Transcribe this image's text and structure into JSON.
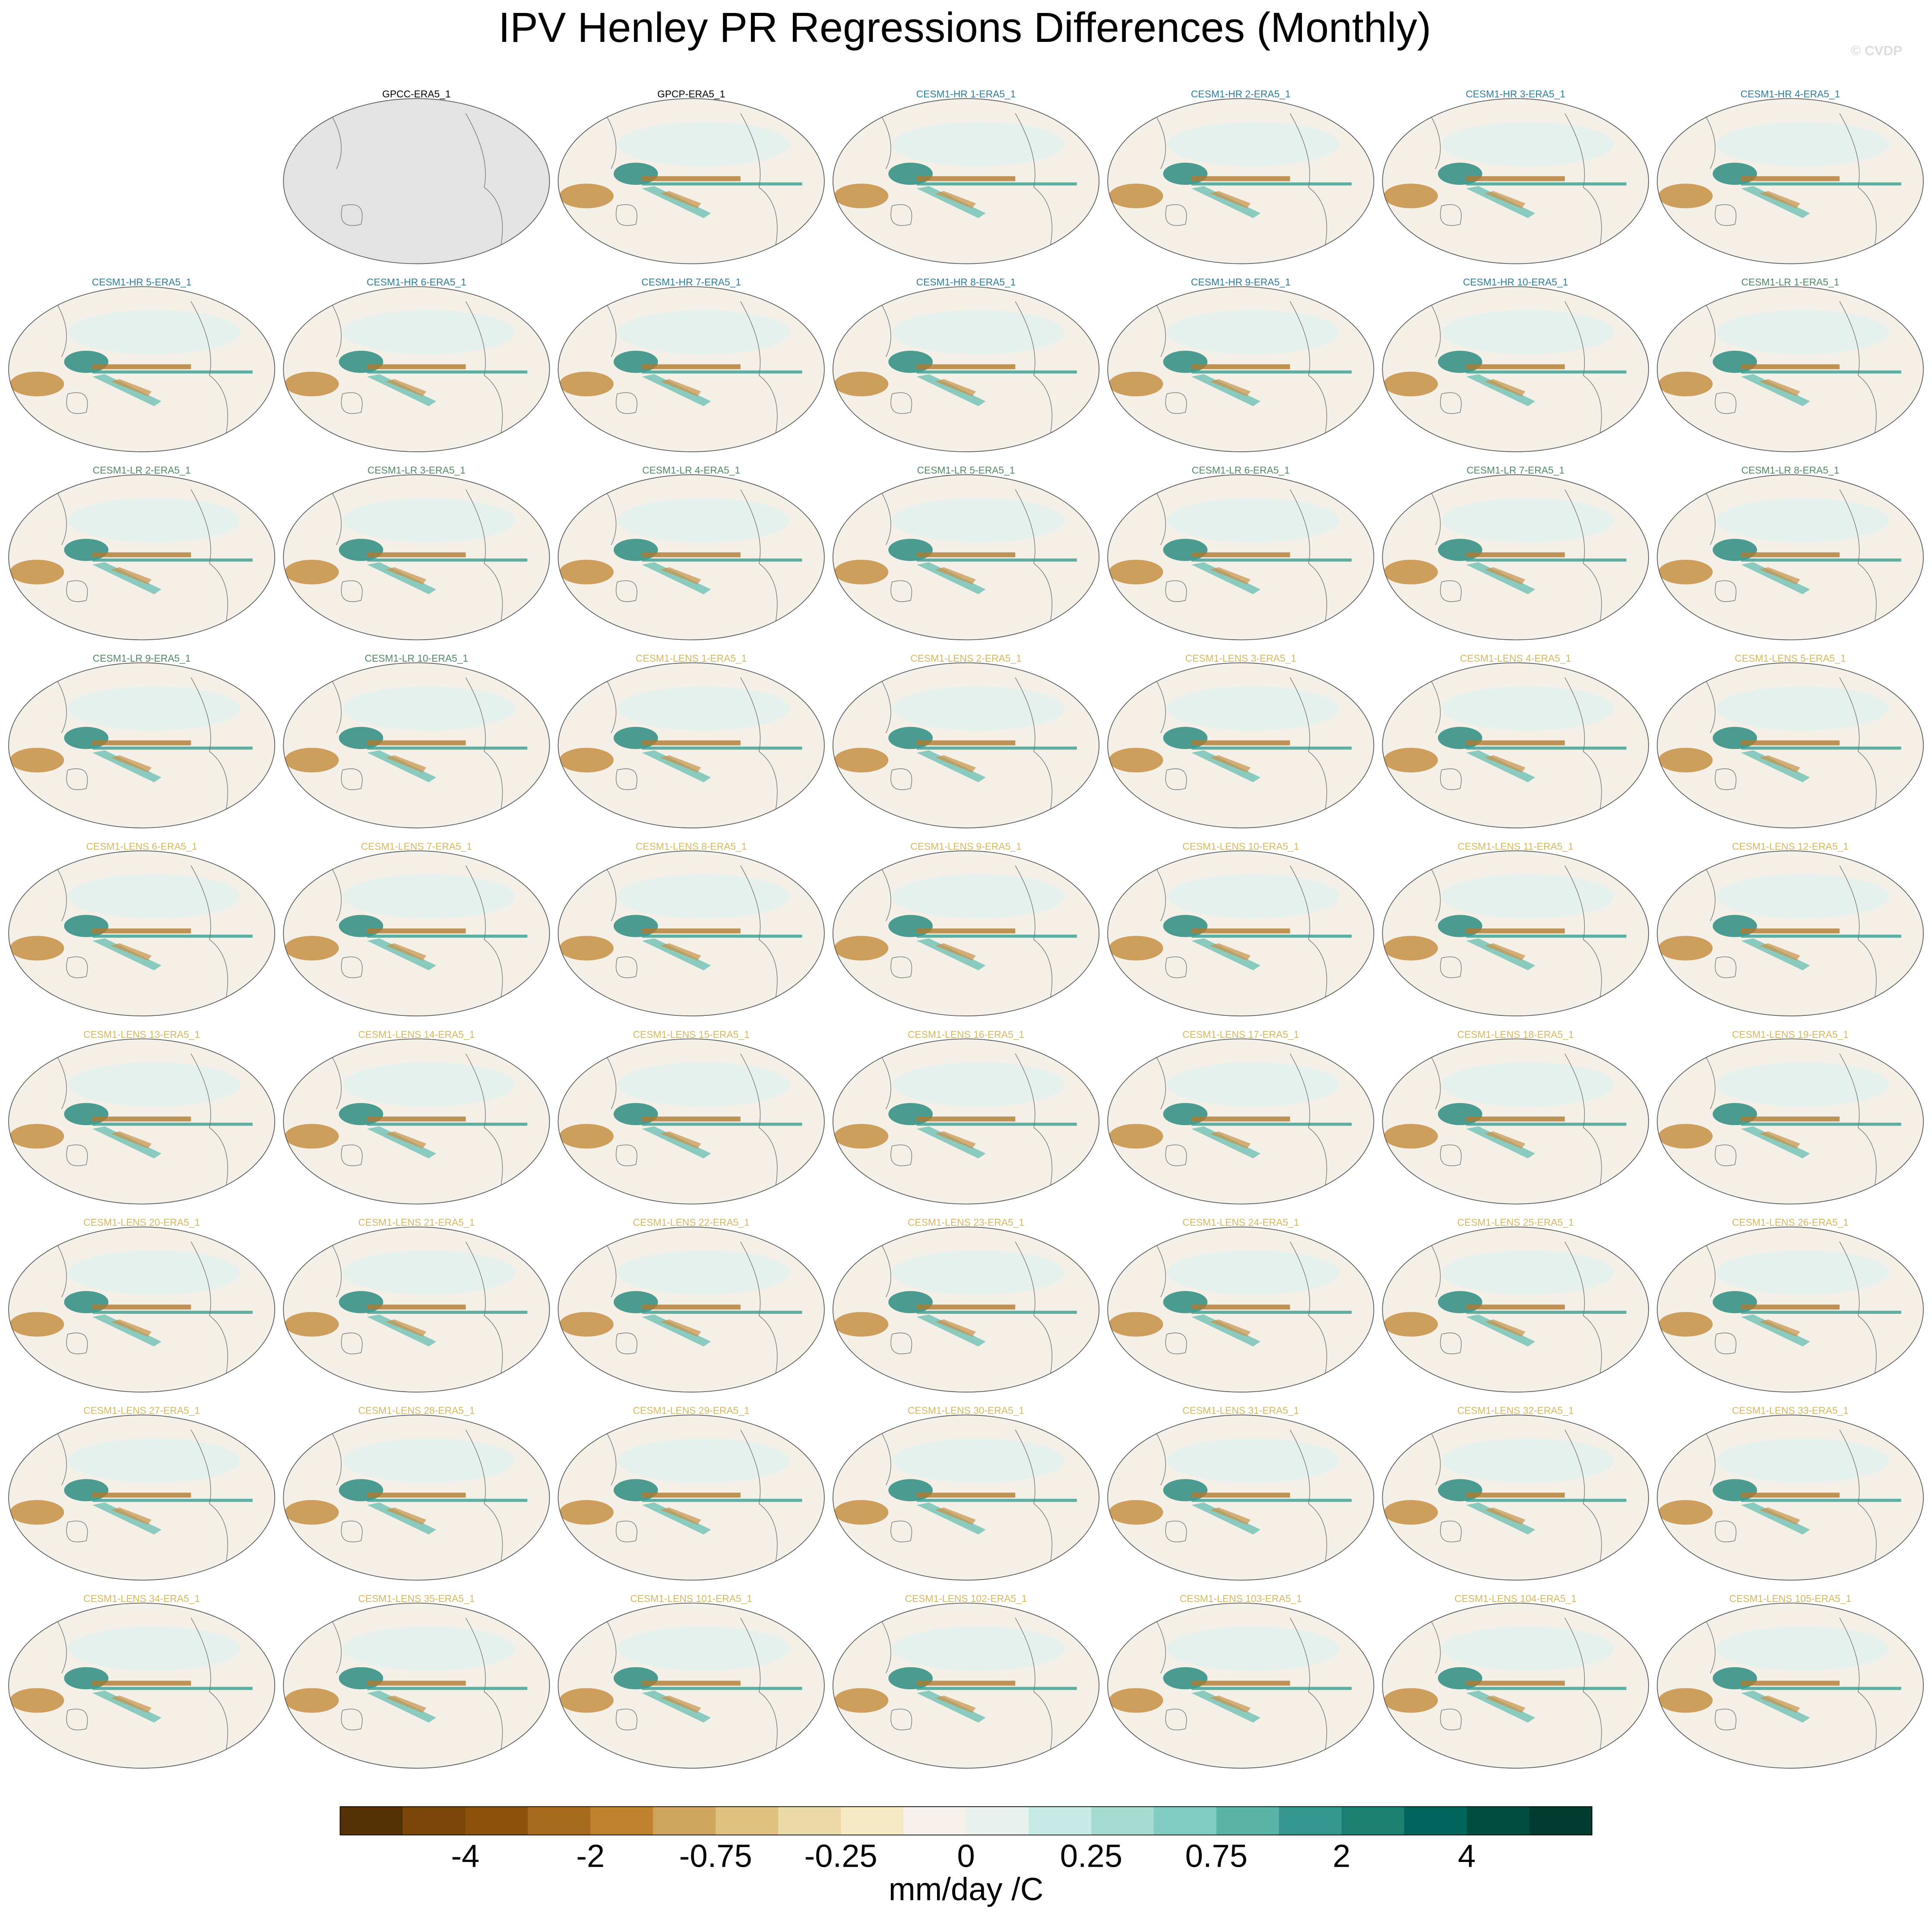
{
  "title": "IPV Henley PR Regressions Differences (Monthly)",
  "watermark": "© CVDP",
  "panels": [
    {
      "title": "GPCC-ERA5_1",
      "color": "#000000"
    },
    {
      "title": "GPCP-ERA5_1",
      "color": "#000000"
    },
    {
      "title": "CESM1-HR 1-ERA5_1",
      "color": "#2b7d9c"
    },
    {
      "title": "CESM1-HR 2-ERA5_1",
      "color": "#2b7d9c"
    },
    {
      "title": "CESM1-HR 3-ERA5_1",
      "color": "#2b7d9c"
    },
    {
      "title": "CESM1-HR 4-ERA5_1",
      "color": "#2b7d9c"
    },
    {
      "title": "CESM1-HR 5-ERA5_1",
      "color": "#2b7d9c"
    },
    {
      "title": "CESM1-HR 6-ERA5_1",
      "color": "#2b7d9c"
    },
    {
      "title": "CESM1-HR 7-ERA5_1",
      "color": "#2b7d9c"
    },
    {
      "title": "CESM1-HR 8-ERA5_1",
      "color": "#2b7d9c"
    },
    {
      "title": "CESM1-HR 9-ERA5_1",
      "color": "#2b7d9c"
    },
    {
      "title": "CESM1-HR 10-ERA5_1",
      "color": "#2b7d9c"
    },
    {
      "title": "CESM1-LR 1-ERA5_1",
      "color": "#4f8a63"
    },
    {
      "title": "CESM1-LR 2-ERA5_1",
      "color": "#4f8a63"
    },
    {
      "title": "CESM1-LR 3-ERA5_1",
      "color": "#4f8a63"
    },
    {
      "title": "CESM1-LR 4-ERA5_1",
      "color": "#4f8a63"
    },
    {
      "title": "CESM1-LR 5-ERA5_1",
      "color": "#4f8a63"
    },
    {
      "title": "CESM1-LR 6-ERA5_1",
      "color": "#4f8a63"
    },
    {
      "title": "CESM1-LR 7-ERA5_1",
      "color": "#4f8a63"
    },
    {
      "title": "CESM1-LR 8-ERA5_1",
      "color": "#4f8a63"
    },
    {
      "title": "CESM1-LR 9-ERA5_1",
      "color": "#4f8a63"
    },
    {
      "title": "CESM1-LR 10-ERA5_1",
      "color": "#4f8a63"
    },
    {
      "title": "CESM1-LENS 1-ERA5_1",
      "color": "#d6b85e"
    },
    {
      "title": "CESM1-LENS 2-ERA5_1",
      "color": "#d6b85e"
    },
    {
      "title": "CESM1-LENS 3-ERA5_1",
      "color": "#d6b85e"
    },
    {
      "title": "CESM1-LENS 4-ERA5_1",
      "color": "#d6b85e"
    },
    {
      "title": "CESM1-LENS 5-ERA5_1",
      "color": "#d6b85e"
    },
    {
      "title": "CESM1-LENS 6-ERA5_1",
      "color": "#d6b85e"
    },
    {
      "title": "CESM1-LENS 7-ERA5_1",
      "color": "#d6b85e"
    },
    {
      "title": "CESM1-LENS 8-ERA5_1",
      "color": "#d6b85e"
    },
    {
      "title": "CESM1-LENS 9-ERA5_1",
      "color": "#d6b85e"
    },
    {
      "title": "CESM1-LENS 10-ERA5_1",
      "color": "#d6b85e"
    },
    {
      "title": "CESM1-LENS 11-ERA5_1",
      "color": "#d6b85e"
    },
    {
      "title": "CESM1-LENS 12-ERA5_1",
      "color": "#d6b85e"
    },
    {
      "title": "CESM1-LENS 13-ERA5_1",
      "color": "#d6b85e"
    },
    {
      "title": "CESM1-LENS 14-ERA5_1",
      "color": "#d6b85e"
    },
    {
      "title": "CESM1-LENS 15-ERA5_1",
      "color": "#d6b85e"
    },
    {
      "title": "CESM1-LENS 16-ERA5_1",
      "color": "#d6b85e"
    },
    {
      "title": "CESM1-LENS 17-ERA5_1",
      "color": "#d6b85e"
    },
    {
      "title": "CESM1-LENS 18-ERA5_1",
      "color": "#d6b85e"
    },
    {
      "title": "CESM1-LENS 19-ERA5_1",
      "color": "#d6b85e"
    },
    {
      "title": "CESM1-LENS 20-ERA5_1",
      "color": "#d6b85e"
    },
    {
      "title": "CESM1-LENS 21-ERA5_1",
      "color": "#d6b85e"
    },
    {
      "title": "CESM1-LENS 22-ERA5_1",
      "color": "#d6b85e"
    },
    {
      "title": "CESM1-LENS 23-ERA5_1",
      "color": "#d6b85e"
    },
    {
      "title": "CESM1-LENS 24-ERA5_1",
      "color": "#d6b85e"
    },
    {
      "title": "CESM1-LENS 25-ERA5_1",
      "color": "#d6b85e"
    },
    {
      "title": "CESM1-LENS 26-ERA5_1",
      "color": "#d6b85e"
    },
    {
      "title": "CESM1-LENS 27-ERA5_1",
      "color": "#d6b85e"
    },
    {
      "title": "CESM1-LENS 28-ERA5_1",
      "color": "#d6b85e"
    },
    {
      "title": "CESM1-LENS 29-ERA5_1",
      "color": "#d6b85e"
    },
    {
      "title": "CESM1-LENS 30-ERA5_1",
      "color": "#d6b85e"
    },
    {
      "title": "CESM1-LENS 31-ERA5_1",
      "color": "#d6b85e"
    },
    {
      "title": "CESM1-LENS 32-ERA5_1",
      "color": "#d6b85e"
    },
    {
      "title": "CESM1-LENS 33-ERA5_1",
      "color": "#d6b85e"
    },
    {
      "title": "CESM1-LENS 34-ERA5_1",
      "color": "#d6b85e"
    },
    {
      "title": "CESM1-LENS 35-ERA5_1",
      "color": "#d6b85e"
    },
    {
      "title": "CESM1-LENS 101-ERA5_1",
      "color": "#d6b85e"
    },
    {
      "title": "CESM1-LENS 102-ERA5_1",
      "color": "#d6b85e"
    },
    {
      "title": "CESM1-LENS 103-ERA5_1",
      "color": "#d6b85e"
    },
    {
      "title": "CESM1-LENS 104-ERA5_1",
      "color": "#d6b85e"
    },
    {
      "title": "CESM1-LENS 105-ERA5_1",
      "color": "#d6b85e"
    }
  ],
  "colorbar": {
    "colors": [
      "#543005",
      "#7a4709",
      "#8c510a",
      "#a66a1e",
      "#bf812d",
      "#d0a55e",
      "#dfc27d",
      "#ecd9a8",
      "#f6e8c3",
      "#f5f1ea",
      "#e8f1ee",
      "#c7eae5",
      "#a6dbd2",
      "#80cdc1",
      "#5ab4a6",
      "#35978f",
      "#1d7f72",
      "#01665e",
      "#014d40",
      "#003c30"
    ],
    "ticks": [
      -4,
      -2,
      -0.75,
      -0.25,
      0,
      0.25,
      0.75,
      2,
      4
    ],
    "label": "mm/day /C"
  }
}
